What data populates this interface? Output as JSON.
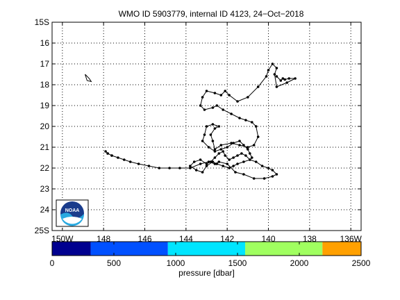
{
  "chart_data": [
    {
      "type": "line",
      "title": "WMO ID 5903779, internal ID 4123, 24−Oct−2018",
      "xlabel": "",
      "ylabel": "",
      "xlim": [
        150.5,
        135.5
      ],
      "ylim": [
        15,
        25
      ],
      "x_ticks": [
        150,
        148,
        146,
        144,
        142,
        140,
        138,
        136
      ],
      "x_tick_labels": [
        "150W",
        "148",
        "146",
        "144",
        "142",
        "140",
        "138",
        "136W"
      ],
      "y_ticks": [
        15,
        16,
        17,
        18,
        19,
        20,
        21,
        22,
        23,
        24,
        25
      ],
      "y_tick_labels": [
        "15S",
        "16",
        "17",
        "18",
        "19",
        "20",
        "21",
        "22",
        "23",
        "24",
        "25S"
      ],
      "grid": true,
      "series": [
        {
          "values_note": "",
          "x": [
            139.6,
            139.4,
            139.3,
            139.2,
            139.0,
            138.7,
            139.1,
            139.6,
            139.7,
            139.6,
            139.8,
            140.0,
            140.1,
            140.5,
            141.0,
            141.5,
            141.9,
            142.1,
            142.3,
            142.6,
            143.0,
            143.2,
            143.3,
            143.1,
            142.7,
            142.5,
            142.2,
            141.8,
            141.4,
            141.1,
            140.8,
            140.6,
            140.5,
            140.7,
            141.0,
            141.4,
            141.8,
            142.3,
            142.6,
            142.7,
            142.8,
            142.6,
            142.4,
            142.7,
            143.0,
            143.1,
            143.2,
            142.9,
            142.6,
            142.3,
            142.0,
            141.7,
            141.4,
            141.2,
            141.0,
            140.9,
            140.8,
            140.9,
            141.1,
            141.3,
            141.5,
            141.7,
            141.9,
            142.1,
            142.2,
            142.4,
            142.6,
            142.8,
            143.0,
            143.3,
            143.6,
            143.8,
            143.5,
            143.2,
            143.0,
            142.7,
            142.5,
            142.2,
            141.9,
            141.7,
            141.5,
            141.2,
            140.9,
            140.6,
            140.3,
            140.0,
            139.8,
            139.6,
            139.8,
            140.2,
            140.7,
            141.2,
            141.6,
            142.0,
            142.4,
            142.6,
            142.9,
            143.3,
            143.8,
            144.3,
            144.8,
            145.3,
            145.8,
            146.3,
            146.7,
            147.0,
            147.3,
            147.6,
            147.8,
            147.9,
            147.8,
            147.6
          ],
          "y": [
            17.6,
            17.8,
            17.7,
            17.75,
            17.7,
            17.7,
            17.9,
            18.1,
            17.5,
            17.2,
            17.0,
            17.3,
            17.6,
            18.1,
            18.6,
            18.8,
            18.5,
            18.3,
            18.5,
            18.4,
            18.3,
            18.6,
            19.0,
            19.2,
            19.1,
            19.0,
            19.2,
            19.4,
            19.6,
            19.7,
            19.8,
            20.0,
            20.5,
            20.9,
            21.0,
            20.9,
            20.8,
            20.9,
            21.1,
            20.7,
            20.4,
            20.1,
            20.0,
            19.9,
            20.0,
            20.4,
            20.7,
            21.0,
            21.2,
            21.1,
            21.0,
            20.8,
            20.7,
            20.9,
            21.1,
            21.3,
            21.5,
            21.6,
            21.4,
            21.3,
            21.4,
            21.5,
            21.6,
            21.4,
            21.2,
            21.3,
            21.5,
            21.7,
            21.8,
            21.6,
            21.7,
            21.9,
            22.1,
            22.2,
            21.9,
            21.7,
            21.8,
            21.9,
            22.0,
            21.9,
            21.8,
            21.7,
            21.6,
            21.7,
            21.9,
            22.0,
            22.1,
            22.3,
            22.4,
            22.5,
            22.5,
            22.3,
            22.2,
            21.8,
            21.7,
            21.8,
            21.7,
            21.8,
            22.0,
            22.0,
            22.0,
            22.0,
            21.9,
            21.8,
            21.7,
            21.6,
            21.5,
            21.4,
            21.3,
            21.2,
            21.3,
            21.4
          ]
        }
      ],
      "logo": {
        "name": "NOAA",
        "text": "NOAA"
      },
      "island_outline": true
    },
    {
      "type": "colorbar",
      "xlabel": "pressure [dbar]",
      "range": [
        0,
        2500
      ],
      "tick_values": [
        0,
        500,
        1000,
        1500,
        2000,
        2500
      ],
      "tick_labels": [
        "0",
        "500",
        "1000",
        "1500",
        "2000",
        "2500"
      ],
      "segments": [
        {
          "from": 0,
          "to": 312,
          "color": "#00008f"
        },
        {
          "from": 312,
          "to": 937,
          "color": "#0050ff"
        },
        {
          "from": 937,
          "to": 1562,
          "color": "#00e5ff"
        },
        {
          "from": 1562,
          "to": 2187,
          "color": "#a0ff60"
        },
        {
          "from": 2187,
          "to": 2500,
          "color": "#ffa000"
        }
      ]
    }
  ]
}
